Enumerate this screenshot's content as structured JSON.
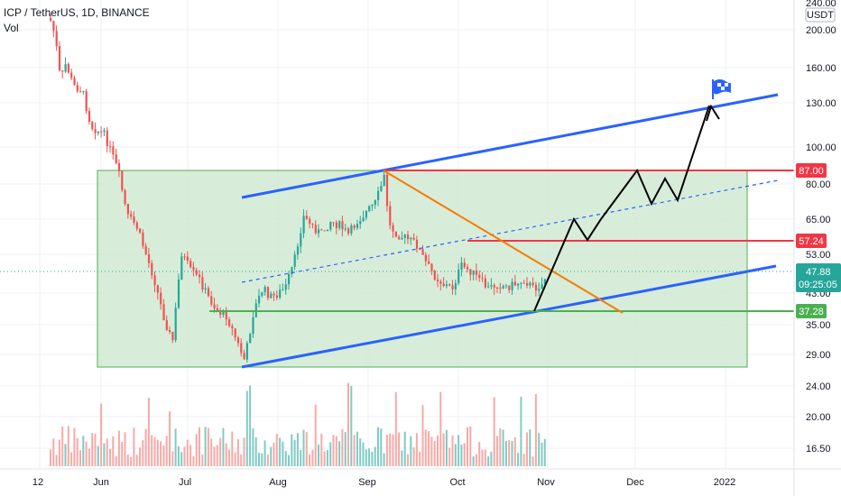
{
  "header": {
    "symbol_line": "ICP / TetherUS, 1D, BINANCE",
    "vol_label": "Vol"
  },
  "currency_label": "USDT",
  "colors": {
    "up": "#26a69a",
    "down": "#ef5350",
    "channel": "#2962ff",
    "resistance": "#f23645",
    "support": "#4caf50",
    "diagonal": "#f57c00",
    "box_fill": "#c8e6c9",
    "box_border": "#4caf50",
    "projection": "#000000",
    "last_price": "#26a69a"
  },
  "chart_data": {
    "type": "candlestick",
    "scale": "log",
    "y_ticks": [
      "240.00",
      "200.00",
      "160.00",
      "130.00",
      "100.00",
      "80.00",
      "65.00",
      "53.00",
      "43.00",
      "35.00",
      "29.00",
      "24.00",
      "20.00",
      "16.50"
    ],
    "x_ticks": [
      "12",
      "Jun",
      "Jul",
      "Aug",
      "Sep",
      "Oct",
      "Nov",
      "Dec",
      "2022"
    ],
    "price_labels": [
      {
        "name": "resistance",
        "value": "87.00"
      },
      {
        "name": "mid-level",
        "value": "57.24"
      },
      {
        "name": "support",
        "value": "37.28"
      }
    ],
    "last_price": {
      "value": "47.88",
      "countdown": "09:25:05"
    },
    "levels": {
      "resistance": 87.0,
      "mid": 57.24,
      "support": 37.28
    },
    "range_box": {
      "low": 27.5,
      "high": 87.0
    }
  }
}
